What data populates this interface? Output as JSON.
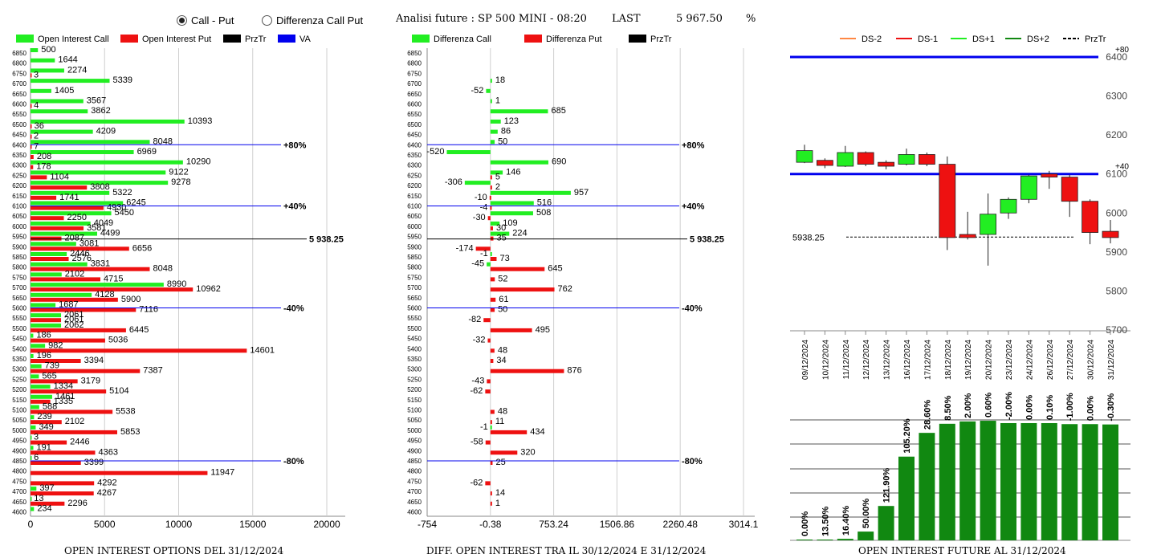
{
  "header": {
    "radio_call_put": "Call - Put",
    "radio_diff": "Differenza Call Put",
    "selected": "call_put",
    "title": "Analisi future : SP 500 MINI - 08:20",
    "last_label": "LAST",
    "last_value": "5 967.50",
    "pct_label": "%"
  },
  "colors": {
    "call": "#22ee22",
    "put": "#ee1111",
    "prztr": "#000000",
    "va": "#0000ee",
    "future_bar": "#118811"
  },
  "legend_left": [
    "Open Interest Call",
    "Open Interest Put",
    "PrzTr",
    "VA"
  ],
  "legend_mid": [
    "Differenza Call",
    "Differenza Put",
    "PrzTr"
  ],
  "legend_right": [
    "DS-2",
    "DS-1",
    "DS+1",
    "DS+2",
    "PrzTr"
  ],
  "footers": {
    "left": "OPEN INTEREST OPTIONS DEL 31/12/2024",
    "mid": "DIFF. OPEN INTEREST TRA IL 30/12/2024 E 31/12/2024",
    "right": "OPEN INTEREST FUTURE AL 31/12/2024"
  },
  "chart_data": [
    {
      "type": "bar",
      "orientation": "horizontal",
      "categories": [
        6850,
        6800,
        6750,
        6700,
        6650,
        6600,
        6550,
        6500,
        6450,
        6400,
        6350,
        6300,
        6250,
        6200,
        6150,
        6100,
        6050,
        6000,
        5950,
        5900,
        5850,
        5800,
        5750,
        5700,
        5650,
        5600,
        5550,
        5500,
        5450,
        5400,
        5350,
        5300,
        5250,
        5200,
        5150,
        5100,
        5050,
        5000,
        4950,
        4900,
        4850,
        4800,
        4750,
        4700,
        4650,
        4600
      ],
      "series": [
        {
          "name": "Open Interest Call",
          "values": [
            500,
            1644,
            2274,
            5339,
            1405,
            3567,
            3862,
            10393,
            4209,
            8048,
            6969,
            10290,
            9122,
            9278,
            5322,
            6245,
            5450,
            4049,
            4499,
            3081,
            2446,
            3831,
            2102,
            8990,
            4128,
            1687,
            2061,
            2062,
            186,
            982,
            196,
            739,
            565,
            1334,
            1461,
            588,
            239,
            349,
            3,
            191,
            6,
            null,
            null,
            397,
            13,
            234
          ]
        },
        {
          "name": "Open Interest Put",
          "values": [
            null,
            null,
            3,
            null,
            null,
            4,
            null,
            36,
            2,
            7,
            208,
            178,
            1104,
            3808,
            1741,
            4930,
            2250,
            3581,
            2087,
            6656,
            2576,
            8048,
            4715,
            10962,
            5900,
            7116,
            2061,
            6445,
            5036,
            14601,
            3394,
            7387,
            3179,
            5104,
            1335,
            5538,
            2102,
            5853,
            2446,
            4363,
            3399,
            11947,
            4292,
            4267,
            2296,
            null
          ]
        }
      ],
      "reference_lines": [
        {
          "label": "+80%",
          "y": 6400,
          "kind": "VA"
        },
        {
          "label": "+40%",
          "y": 6100,
          "kind": "VA"
        },
        {
          "label": "5 938.25",
          "y": 5938.25,
          "kind": "PrzTr"
        },
        {
          "label": "-40%",
          "y": 5600,
          "kind": "VA"
        },
        {
          "label": "-80%",
          "y": 4850,
          "kind": "VA"
        }
      ],
      "xlim": [
        0,
        20000
      ],
      "xticks": [
        "0",
        "5000",
        "10000",
        "15000",
        "20000"
      ]
    },
    {
      "type": "bar",
      "orientation": "horizontal",
      "categories": [
        6850,
        6800,
        6750,
        6700,
        6650,
        6600,
        6550,
        6500,
        6450,
        6400,
        6350,
        6300,
        6250,
        6200,
        6150,
        6100,
        6050,
        6000,
        5950,
        5900,
        5850,
        5800,
        5750,
        5700,
        5650,
        5600,
        5550,
        5500,
        5450,
        5400,
        5350,
        5300,
        5250,
        5200,
        5150,
        5100,
        5050,
        5000,
        4950,
        4900,
        4850,
        4800,
        4750,
        4700,
        4650,
        4600
      ],
      "series": [
        {
          "name": "Differenza Call",
          "values": [
            null,
            null,
            null,
            18,
            -52,
            1,
            685,
            123,
            86,
            50,
            -520,
            690,
            146,
            -306,
            957,
            516,
            508,
            109,
            224,
            null,
            -1,
            -45,
            null,
            null,
            null,
            null,
            null,
            null,
            null,
            null,
            null,
            null,
            null,
            null,
            null,
            null,
            null,
            -1,
            null,
            null,
            null,
            null,
            null,
            null,
            null,
            null
          ]
        },
        {
          "name": "Differenza Put",
          "values": [
            null,
            null,
            null,
            null,
            null,
            null,
            null,
            null,
            null,
            null,
            null,
            null,
            5,
            2,
            -10,
            -4,
            -30,
            30,
            35,
            -174,
            73,
            645,
            52,
            762,
            61,
            50,
            -82,
            495,
            -32,
            48,
            34,
            876,
            -43,
            -62,
            null,
            48,
            11,
            434,
            -58,
            320,
            25,
            null,
            -62,
            14,
            1,
            null
          ]
        }
      ],
      "reference_lines": [
        {
          "label": "+80%",
          "y": 6400,
          "kind": "VA"
        },
        {
          "label": "+40%",
          "y": 6100,
          "kind": "VA"
        },
        {
          "label": "5 938.25",
          "y": 5938.25,
          "kind": "PrzTr"
        },
        {
          "label": "-40%",
          "y": 5600,
          "kind": "VA"
        },
        {
          "label": "-80%",
          "y": 4850,
          "kind": "VA"
        }
      ],
      "xlim": [
        -754,
        3014.1
      ],
      "xticks": [
        "-754",
        "-0.38",
        "753.24",
        "1506.86",
        "2260.48",
        "3014.1"
      ]
    },
    {
      "type": "candlestick",
      "dates": [
        "09/12/2024",
        "10/12/2024",
        "11/12/2024",
        "12/12/2024",
        "13/12/2024",
        "16/12/2024",
        "17/12/2024",
        "18/12/2024",
        "19/12/2024",
        "20/12/2024",
        "23/12/2024",
        "24/12/2024",
        "26/12/2024",
        "27/12/2024",
        "30/12/2024",
        "31/12/2024"
      ],
      "candles": [
        {
          "o": 6130,
          "c": 6160,
          "h": 6175,
          "l": 6128
        },
        {
          "o": 6135,
          "c": 6122,
          "h": 6140,
          "l": 6115
        },
        {
          "o": 6120,
          "c": 6155,
          "h": 6172,
          "l": 6118
        },
        {
          "o": 6155,
          "c": 6125,
          "h": 6158,
          "l": 6120
        },
        {
          "o": 6130,
          "c": 6120,
          "h": 6135,
          "l": 6112
        },
        {
          "o": 6125,
          "c": 6150,
          "h": 6165,
          "l": 6122
        },
        {
          "o": 6150,
          "c": 6125,
          "h": 6155,
          "l": 6120
        },
        {
          "o": 6125,
          "c": 5937,
          "h": 6145,
          "l": 5905
        },
        {
          "o": 5945,
          "c": 5937,
          "h": 6003,
          "l": 5932
        },
        {
          "o": 5945,
          "c": 5997,
          "h": 6050,
          "l": 5865
        },
        {
          "o": 6000,
          "c": 6035,
          "h": 6040,
          "l": 5985
        },
        {
          "o": 6035,
          "c": 6095,
          "h": 6098,
          "l": 6025
        },
        {
          "o": 6100,
          "c": 6092,
          "h": 6108,
          "l": 6062
        },
        {
          "o": 6092,
          "c": 6030,
          "h": 6098,
          "l": 5990
        },
        {
          "o": 6030,
          "c": 5950,
          "h": 6035,
          "l": 5920
        },
        {
          "o": 5953,
          "c": 5937,
          "h": 5982,
          "l": 5922
        }
      ],
      "reference_lines": [
        {
          "label": "+80",
          "y": 6400,
          "kind": "VA"
        },
        {
          "label": "+40",
          "y": 6100,
          "kind": "VA"
        },
        {
          "label": "5938.25",
          "y": 5938.25,
          "kind": "PrzTr"
        }
      ],
      "ylim": [
        5700,
        6400
      ],
      "yticks": [
        "5700",
        "5800",
        "5900",
        "6000",
        "6100",
        "6200",
        "6300",
        "6400"
      ]
    },
    {
      "type": "bar",
      "categories": [
        "09/12/2024",
        "10/12/2024",
        "11/12/2024",
        "12/12/2024",
        "13/12/2024",
        "16/12/2024",
        "17/12/2024",
        "18/12/2024",
        "19/12/2024",
        "20/12/2024",
        "23/12/2024",
        "24/12/2024",
        "26/12/2024",
        "27/12/2024",
        "30/12/2024",
        "31/12/2024"
      ],
      "values": [
        0,
        0.2,
        0.9,
        5.2,
        20.4,
        49.7,
        63.8,
        69.2,
        70.6,
        71.0,
        69.6,
        69.6,
        69.6,
        69.0,
        69.0,
        68.8
      ],
      "labels": [
        "0.00%",
        "13.50%",
        "16.40%",
        "50.00%",
        "121.90%",
        "105.20%",
        "28.60%",
        "8.50%",
        "2.00%",
        "0.60%",
        "-2.00%",
        "0.00%",
        "0.10%",
        "-1.00%",
        "0.00%",
        "-0.30%"
      ]
    }
  ]
}
